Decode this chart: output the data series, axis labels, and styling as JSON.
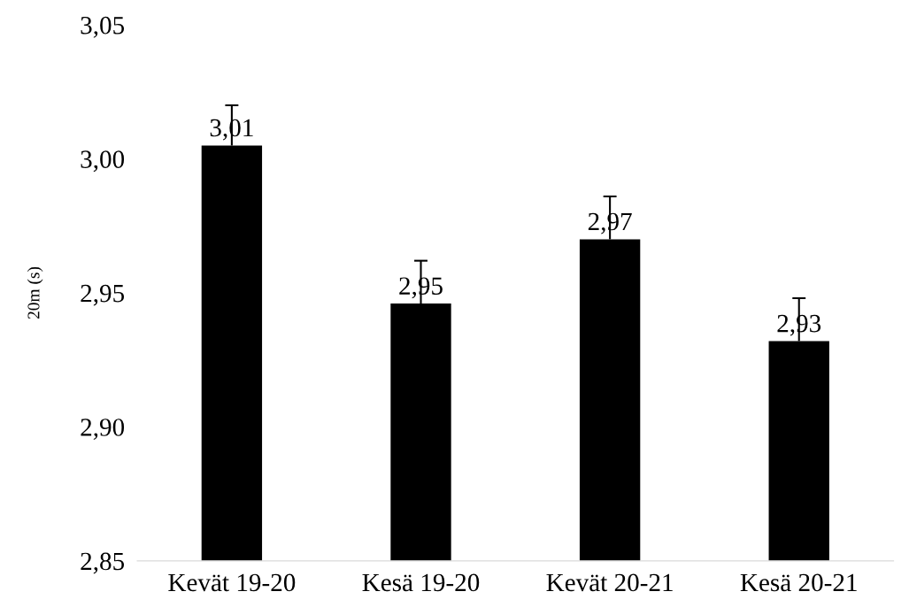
{
  "chart_data": {
    "type": "bar",
    "ylabel": "20m (s)",
    "categories": [
      "Kevät 19-20",
      "Kesä 19-20",
      "Kevät 20-21",
      "Kesä 20-21"
    ],
    "values": [
      3.005,
      2.946,
      2.97,
      2.932
    ],
    "value_labels": [
      "3,01",
      "2,95",
      "2,97",
      "2,93"
    ],
    "errors": [
      [
        3.005,
        3.02
      ],
      [
        2.946,
        2.962
      ],
      [
        2.97,
        2.986
      ],
      [
        2.932,
        2.948
      ]
    ],
    "color": "#000000",
    "ylim": [
      2.85,
      3.05
    ],
    "yticks": [
      {
        "value": 2.85,
        "label": "2,85"
      },
      {
        "value": 2.9,
        "label": "2,90"
      },
      {
        "value": 2.95,
        "label": "2,95"
      },
      {
        "value": 3.0,
        "label": "3,00"
      },
      {
        "value": 3.05,
        "label": "3,05"
      }
    ],
    "grid": false,
    "legend": false
  }
}
